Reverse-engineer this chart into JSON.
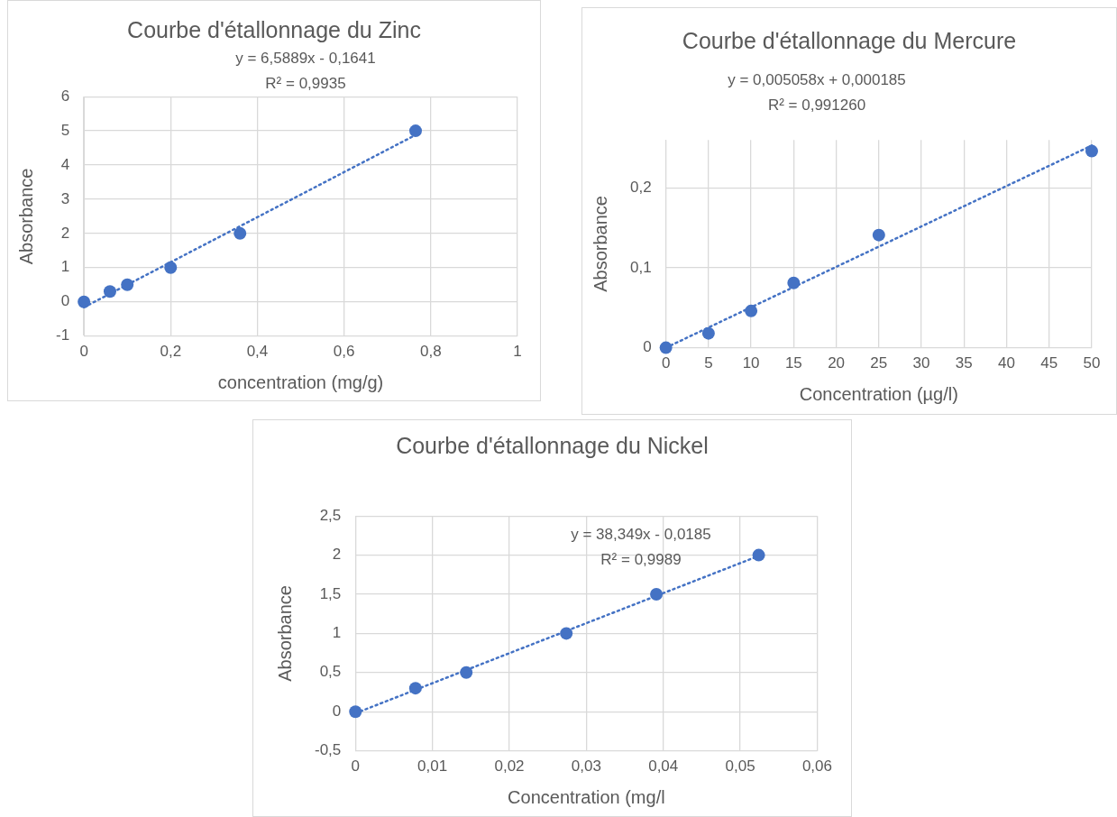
{
  "chart_data": [
    {
      "type": "scatter",
      "title": "Courbe d'étallonnage du Zinc",
      "xlabel": "concentration (mg/g)",
      "ylabel": "Absorbance",
      "annotations": [
        "y = 6,5889x - 0,1641",
        "R² = 0,9935"
      ],
      "series": [
        {
          "type": "scatter",
          "color": "#4472c4",
          "marker": "circle",
          "x": [
            0,
            0.06,
            0.1,
            0.2,
            0.36,
            0.765
          ],
          "values": [
            0,
            0.3,
            0.5,
            1,
            2,
            5
          ]
        },
        {
          "type": "line",
          "color": "#4472c4",
          "marker": "none",
          "line_style": "dotted",
          "x": [
            0,
            0.765
          ],
          "values": [
            -0.16,
            4.88
          ]
        }
      ],
      "xlim": [
        0,
        1
      ],
      "xticks": [
        0,
        {
          "value": 0.2,
          "label": "0,2"
        },
        {
          "value": 0.4,
          "label": "0,4"
        },
        {
          "value": 0.6,
          "label": "0,6"
        },
        {
          "value": 0.8,
          "label": "0,8"
        },
        1
      ],
      "ylim": [
        -1,
        6
      ],
      "yticks": [
        -1,
        0,
        1,
        2,
        3,
        4,
        5,
        6
      ],
      "grid": true,
      "legend": false
    },
    {
      "type": "scatter",
      "title": "Courbe d'étallonnage du Mercure",
      "xlabel": "Concentration (µg/l)",
      "ylabel": "Absorbance",
      "annotations": [
        "y = 0,005058x + 0,000185",
        "R² = 0,991260"
      ],
      "series": [
        {
          "type": "scatter",
          "color": "#4472c4",
          "marker": "circle",
          "x": [
            0,
            5,
            10,
            15,
            25,
            50
          ],
          "values": [
            0,
            0.018,
            0.046,
            0.081,
            0.141,
            0.246
          ]
        },
        {
          "type": "line",
          "color": "#4472c4",
          "marker": "none",
          "line_style": "dotted",
          "x": [
            0,
            50
          ],
          "values": [
            0,
            0.253
          ]
        }
      ],
      "xlim": [
        0,
        50
      ],
      "xticks": [
        0,
        5,
        10,
        15,
        20,
        25,
        30,
        35,
        40,
        45,
        50
      ],
      "ylim": [
        0,
        0.26
      ],
      "yticks": [
        0,
        {
          "value": 0.1,
          "label": "0,1"
        },
        {
          "value": 0.2,
          "label": "0,2"
        }
      ],
      "grid": true,
      "legend": false
    },
    {
      "type": "scatter",
      "title": "Courbe d'étallonnage du Nickel",
      "xlabel": "Concentration (mg/l",
      "ylabel": "Absorbance",
      "annotations": [
        "y = 38,349x - 0,0185",
        "R² = 0,9989"
      ],
      "series": [
        {
          "type": "scatter",
          "color": "#4472c4",
          "marker": "circle",
          "x": [
            0,
            0.0078,
            0.0144,
            0.0274,
            0.0391,
            0.0524
          ],
          "values": [
            0,
            0.3,
            0.5,
            1,
            1.5,
            2
          ]
        },
        {
          "type": "line",
          "color": "#4472c4",
          "marker": "none",
          "line_style": "dotted",
          "x": [
            0,
            0.0524
          ],
          "values": [
            -0.02,
            1.99
          ]
        }
      ],
      "xlim": [
        0,
        0.06
      ],
      "xticks": [
        0,
        {
          "value": 0.01,
          "label": "0,01"
        },
        {
          "value": 0.02,
          "label": "0,02"
        },
        {
          "value": 0.03,
          "label": "0,03"
        },
        {
          "value": 0.04,
          "label": "0,04"
        },
        {
          "value": 0.05,
          "label": "0,05"
        },
        {
          "value": 0.06,
          "label": "0,06"
        }
      ],
      "ylim": [
        -0.5,
        2.5
      ],
      "yticks": [
        {
          "value": -0.5,
          "label": "-0,5"
        },
        0,
        {
          "value": 0.5,
          "label": "0,5"
        },
        1,
        {
          "value": 1.5,
          "label": "1,5"
        },
        2,
        {
          "value": 2.5,
          "label": "2,5"
        }
      ],
      "grid": true,
      "legend": false
    }
  ]
}
